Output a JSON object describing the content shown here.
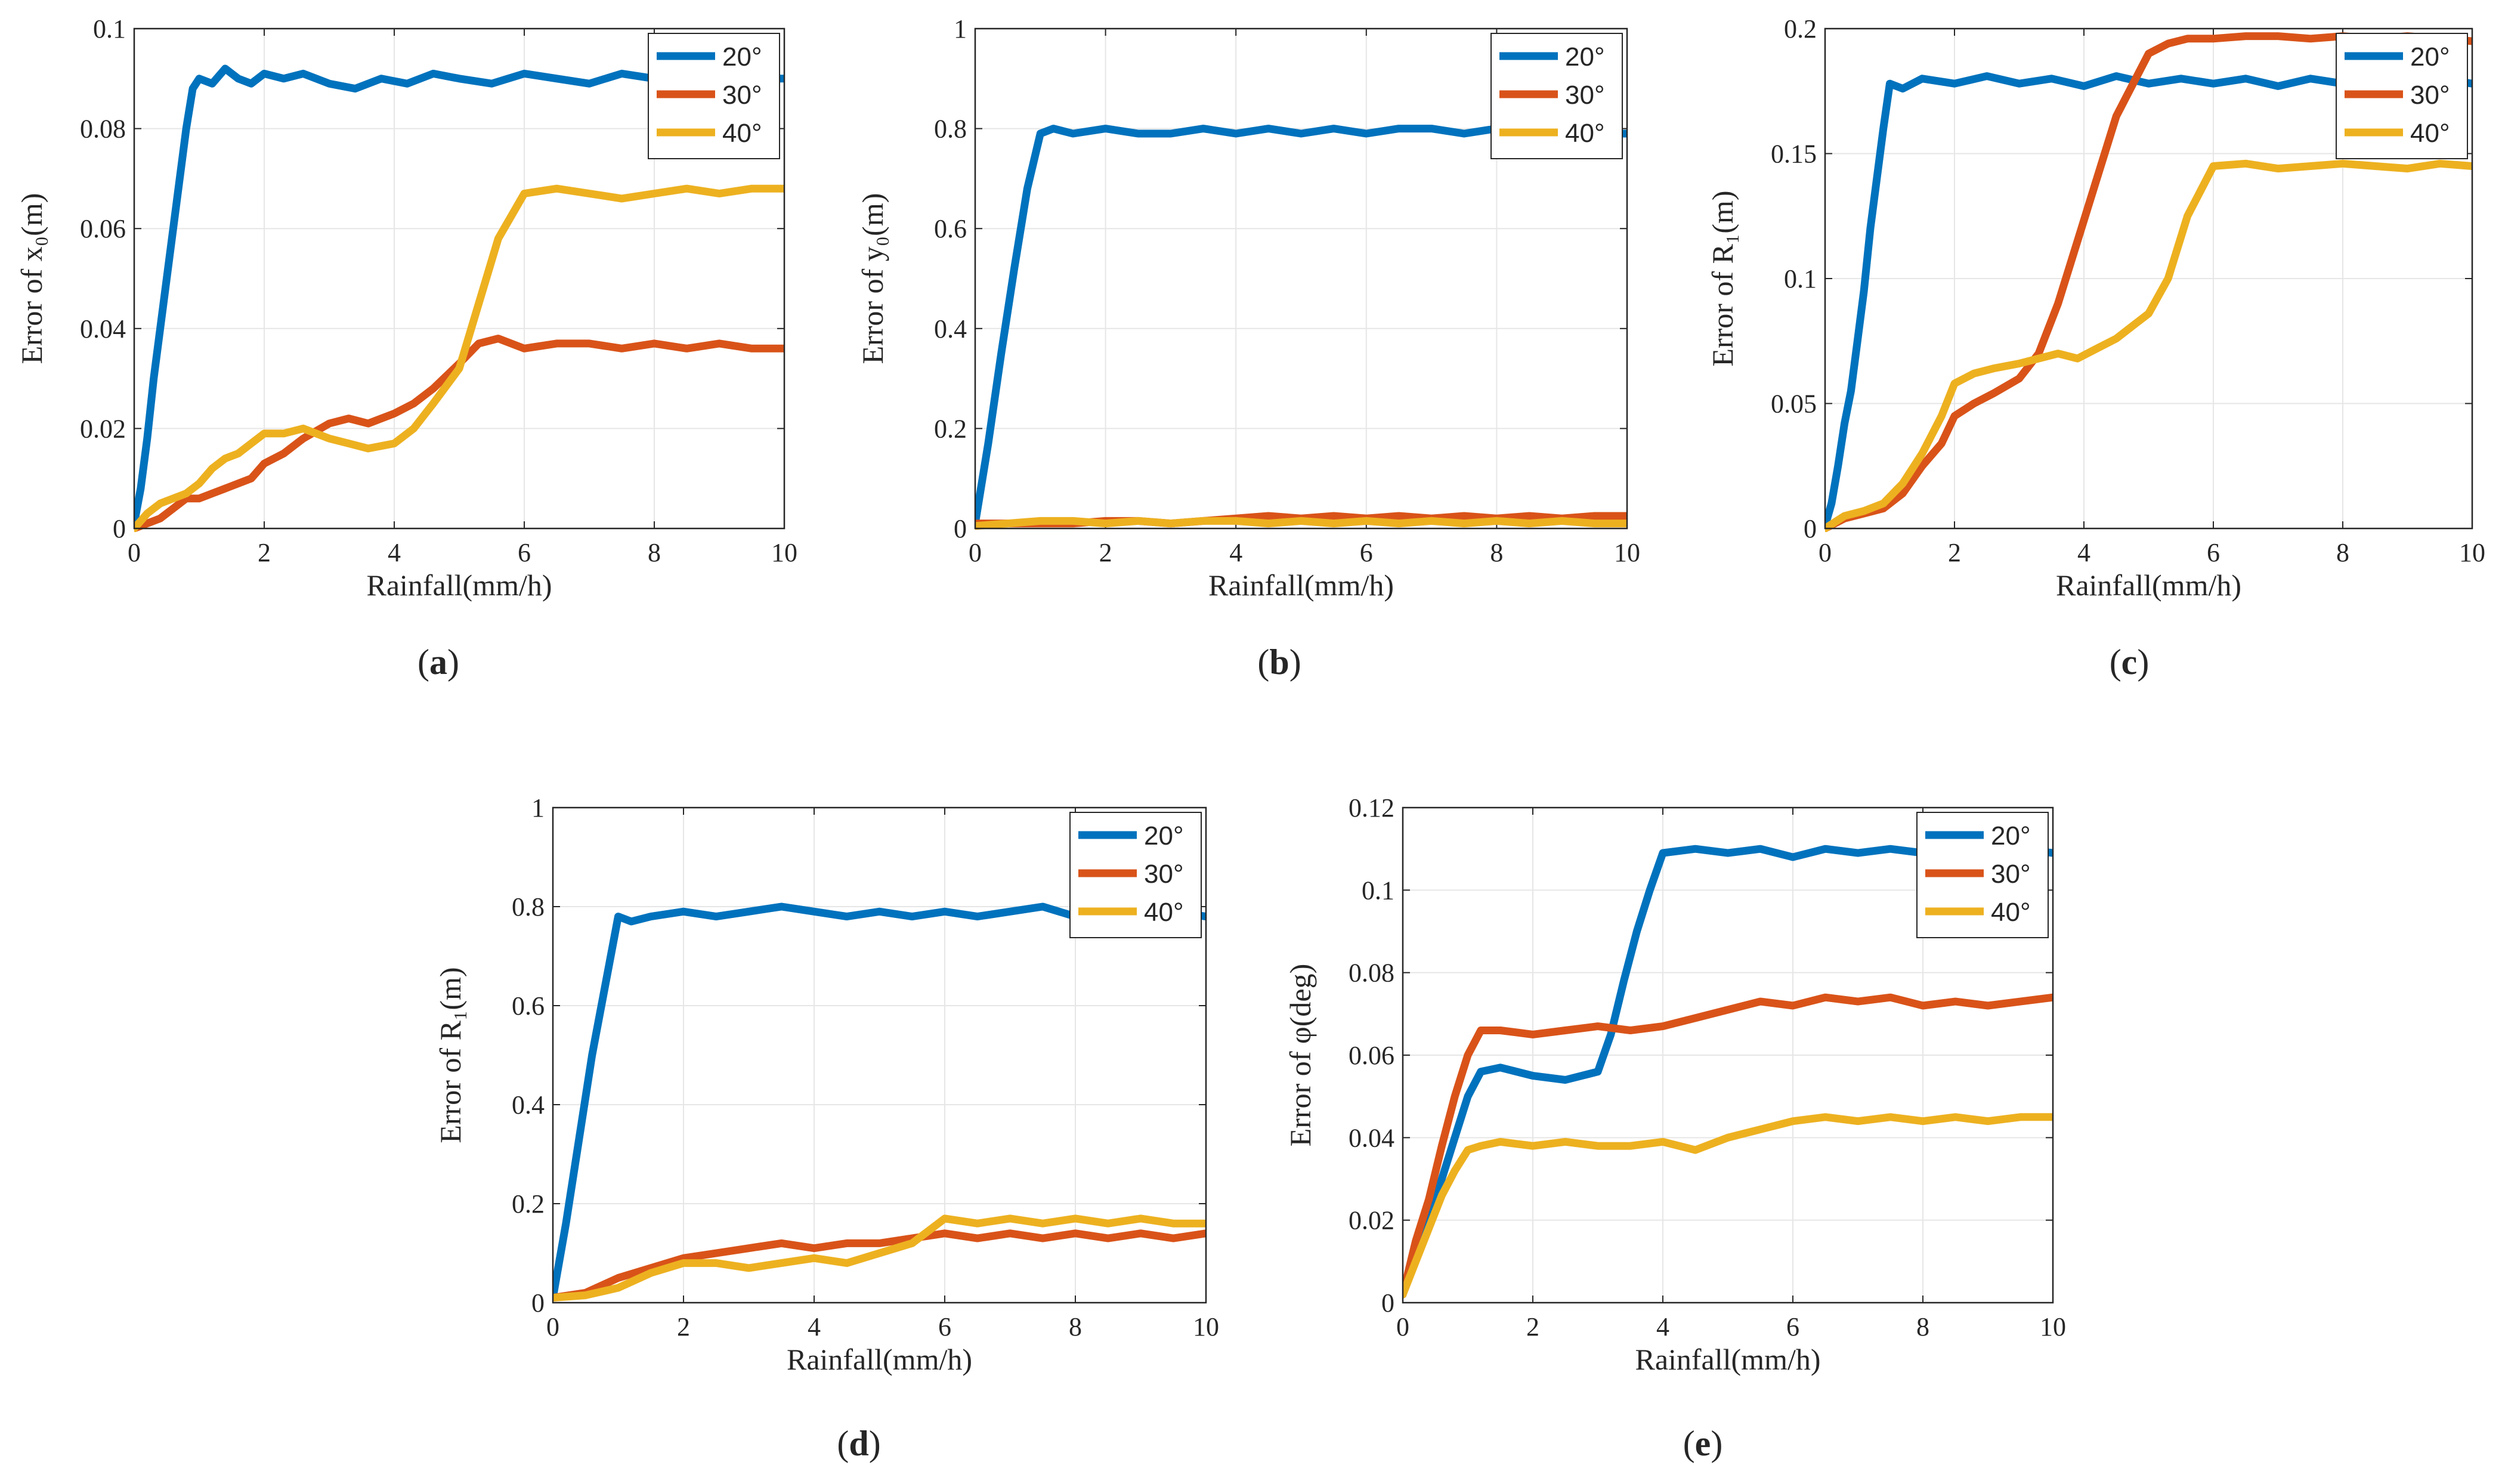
{
  "chart_data": [
    {
      "type": "line",
      "panel_label": "(a)",
      "label_letter": "a",
      "xlabel": "Rainfall(mm/h)",
      "ylabel": "Error of x₀(m)",
      "xlim": [
        0,
        10
      ],
      "ylim": [
        0,
        0.1
      ],
      "xticks": [
        "0",
        "2",
        "4",
        "6",
        "8",
        "10"
      ],
      "yticks": [
        "0",
        "0.02",
        "0.04",
        "0.06",
        "0.08",
        "0.1"
      ],
      "grid": true,
      "legend": "top-right",
      "series": [
        {
          "name": "20°",
          "color": "#0072BD",
          "x": [
            0,
            0.1,
            0.2,
            0.3,
            0.4,
            0.5,
            0.6,
            0.7,
            0.8,
            0.9,
            1,
            1.2,
            1.4,
            1.6,
            1.8,
            2,
            2.3,
            2.6,
            3,
            3.4,
            3.8,
            4.2,
            4.6,
            5,
            5.5,
            6,
            6.5,
            7,
            7.5,
            8,
            8.5,
            9,
            9.5,
            10
          ],
          "y": [
            0.001,
            0.008,
            0.018,
            0.03,
            0.04,
            0.05,
            0.06,
            0.07,
            0.08,
            0.088,
            0.09,
            0.089,
            0.092,
            0.09,
            0.089,
            0.091,
            0.09,
            0.091,
            0.089,
            0.088,
            0.09,
            0.089,
            0.091,
            0.09,
            0.089,
            0.091,
            0.09,
            0.089,
            0.091,
            0.09,
            0.089,
            0.091,
            0.09,
            0.09
          ]
        },
        {
          "name": "30°",
          "color": "#D95319",
          "x": [
            0,
            0.2,
            0.4,
            0.6,
            0.8,
            1,
            1.2,
            1.4,
            1.6,
            1.8,
            2,
            2.3,
            2.6,
            3,
            3.3,
            3.6,
            4,
            4.3,
            4.6,
            5,
            5.3,
            5.6,
            6,
            6.5,
            7,
            7.5,
            8,
            8.5,
            9,
            9.5,
            10
          ],
          "y": [
            0,
            0.001,
            0.002,
            0.004,
            0.006,
            0.006,
            0.007,
            0.008,
            0.009,
            0.01,
            0.013,
            0.015,
            0.018,
            0.021,
            0.022,
            0.021,
            0.023,
            0.025,
            0.028,
            0.033,
            0.037,
            0.038,
            0.036,
            0.037,
            0.037,
            0.036,
            0.037,
            0.036,
            0.037,
            0.036,
            0.036
          ]
        },
        {
          "name": "40°",
          "color": "#EDB120",
          "x": [
            0,
            0.2,
            0.4,
            0.6,
            0.8,
            1,
            1.2,
            1.4,
            1.6,
            1.8,
            2,
            2.3,
            2.6,
            3,
            3.3,
            3.6,
            4,
            4.3,
            4.6,
            5,
            5.3,
            5.6,
            6,
            6.5,
            7,
            7.5,
            8,
            8.5,
            9,
            9.5,
            10
          ],
          "y": [
            0,
            0.003,
            0.005,
            0.006,
            0.007,
            0.009,
            0.012,
            0.014,
            0.015,
            0.017,
            0.019,
            0.019,
            0.02,
            0.018,
            0.017,
            0.016,
            0.017,
            0.02,
            0.025,
            0.032,
            0.045,
            0.058,
            0.067,
            0.068,
            0.067,
            0.066,
            0.067,
            0.068,
            0.067,
            0.068,
            0.068
          ]
        }
      ]
    },
    {
      "type": "line",
      "panel_label": "(b)",
      "label_letter": "b",
      "xlabel": "Rainfall(mm/h)",
      "ylabel": "Error of y₀(m)",
      "xlim": [
        0,
        10
      ],
      "ylim": [
        0,
        1
      ],
      "xticks": [
        "0",
        "2",
        "4",
        "6",
        "8",
        "10"
      ],
      "yticks": [
        "0",
        "0.2",
        "0.4",
        "0.6",
        "0.8",
        "1"
      ],
      "grid": true,
      "legend": "top-right",
      "series": [
        {
          "name": "20°",
          "color": "#0072BD",
          "x": [
            0,
            0.2,
            0.4,
            0.6,
            0.8,
            1,
            1.2,
            1.5,
            2,
            2.5,
            3,
            3.5,
            4,
            4.5,
            5,
            5.5,
            6,
            6.5,
            7,
            7.5,
            8,
            8.5,
            9,
            9.5,
            10
          ],
          "y": [
            0.01,
            0.17,
            0.35,
            0.52,
            0.68,
            0.79,
            0.8,
            0.79,
            0.8,
            0.79,
            0.79,
            0.8,
            0.79,
            0.8,
            0.79,
            0.8,
            0.79,
            0.8,
            0.8,
            0.79,
            0.8,
            0.79,
            0.8,
            0.79,
            0.79
          ]
        },
        {
          "name": "30°",
          "color": "#D95319",
          "x": [
            0,
            0.5,
            1,
            1.5,
            2,
            2.5,
            3,
            3.5,
            4,
            4.5,
            5,
            5.5,
            6,
            6.5,
            7,
            7.5,
            8,
            8.5,
            9,
            9.5,
            10
          ],
          "y": [
            0.01,
            0.01,
            0.01,
            0.01,
            0.015,
            0.015,
            0.01,
            0.015,
            0.02,
            0.025,
            0.02,
            0.025,
            0.02,
            0.025,
            0.02,
            0.025,
            0.02,
            0.025,
            0.02,
            0.025,
            0.025
          ]
        },
        {
          "name": "40°",
          "color": "#EDB120",
          "x": [
            0,
            0.5,
            1,
            1.5,
            2,
            2.5,
            3,
            3.5,
            4,
            4.5,
            5,
            5.5,
            6,
            6.5,
            7,
            7.5,
            8,
            8.5,
            9,
            9.5,
            10
          ],
          "y": [
            0.005,
            0.01,
            0.015,
            0.015,
            0.01,
            0.015,
            0.01,
            0.015,
            0.015,
            0.01,
            0.015,
            0.01,
            0.015,
            0.01,
            0.015,
            0.01,
            0.015,
            0.01,
            0.015,
            0.01,
            0.01
          ]
        }
      ]
    },
    {
      "type": "line",
      "panel_label": "(c)",
      "label_letter": "c",
      "xlabel": "Rainfall(mm/h)",
      "ylabel": "Error of R₁(m)",
      "xlim": [
        0,
        10
      ],
      "ylim": [
        0,
        0.2
      ],
      "xticks": [
        "0",
        "2",
        "4",
        "6",
        "8",
        "10"
      ],
      "yticks": [
        "0",
        "0.05",
        "0.1",
        "0.15",
        "0.2"
      ],
      "grid": true,
      "legend": "top-right",
      "series": [
        {
          "name": "20°",
          "color": "#0072BD",
          "x": [
            0,
            0.1,
            0.2,
            0.3,
            0.4,
            0.5,
            0.6,
            0.7,
            0.8,
            0.9,
            1,
            1.2,
            1.5,
            2,
            2.5,
            3,
            3.5,
            4,
            4.5,
            5,
            5.5,
            6,
            6.5,
            7,
            7.5,
            8,
            8.5,
            9,
            9.5,
            10
          ],
          "y": [
            0.001,
            0.01,
            0.025,
            0.042,
            0.055,
            0.075,
            0.095,
            0.12,
            0.14,
            0.16,
            0.178,
            0.176,
            0.18,
            0.178,
            0.181,
            0.178,
            0.18,
            0.177,
            0.181,
            0.178,
            0.18,
            0.178,
            0.18,
            0.177,
            0.18,
            0.178,
            0.181,
            0.178,
            0.18,
            0.178
          ]
        },
        {
          "name": "30°",
          "color": "#D95319",
          "x": [
            0,
            0.3,
            0.6,
            0.9,
            1.2,
            1.5,
            1.8,
            2,
            2.3,
            2.6,
            3,
            3.3,
            3.6,
            3.9,
            4.2,
            4.5,
            4.8,
            5,
            5.3,
            5.6,
            6,
            6.5,
            7,
            7.5,
            8,
            8.5,
            9,
            9.5,
            10
          ],
          "y": [
            0,
            0.004,
            0.006,
            0.008,
            0.014,
            0.025,
            0.034,
            0.045,
            0.05,
            0.054,
            0.06,
            0.07,
            0.09,
            0.115,
            0.14,
            0.165,
            0.18,
            0.19,
            0.194,
            0.196,
            0.196,
            0.197,
            0.197,
            0.196,
            0.197,
            0.196,
            0.197,
            0.196,
            0.195
          ]
        },
        {
          "name": "40°",
          "color": "#EDB120",
          "x": [
            0,
            0.3,
            0.6,
            0.9,
            1.2,
            1.5,
            1.8,
            2,
            2.3,
            2.6,
            3,
            3.3,
            3.6,
            3.9,
            4.2,
            4.5,
            4.8,
            5,
            5.3,
            5.6,
            6,
            6.5,
            7,
            7.5,
            8,
            8.5,
            9,
            9.5,
            10
          ],
          "y": [
            0,
            0.005,
            0.007,
            0.01,
            0.018,
            0.03,
            0.045,
            0.058,
            0.062,
            0.064,
            0.066,
            0.068,
            0.07,
            0.068,
            0.072,
            0.076,
            0.082,
            0.086,
            0.1,
            0.125,
            0.145,
            0.146,
            0.144,
            0.145,
            0.146,
            0.145,
            0.144,
            0.146,
            0.145
          ]
        }
      ]
    },
    {
      "type": "line",
      "panel_label": "(d)",
      "label_letter": "d",
      "xlabel": "Rainfall(mm/h)",
      "ylabel": "Error of R₁(m)",
      "xlim": [
        0,
        10
      ],
      "ylim": [
        0,
        1
      ],
      "xticks": [
        "0",
        "2",
        "4",
        "6",
        "8",
        "10"
      ],
      "yticks": [
        "0",
        "0.2",
        "0.4",
        "0.6",
        "0.8",
        "1"
      ],
      "grid": true,
      "legend": "top-right",
      "series": [
        {
          "name": "20°",
          "color": "#0072BD",
          "x": [
            0,
            0.2,
            0.4,
            0.6,
            0.8,
            1,
            1.2,
            1.5,
            2,
            2.5,
            3,
            3.5,
            4,
            4.5,
            5,
            5.5,
            6,
            6.5,
            7,
            7.5,
            8,
            8.5,
            9,
            9.5,
            10
          ],
          "y": [
            0.01,
            0.16,
            0.33,
            0.5,
            0.64,
            0.78,
            0.77,
            0.78,
            0.79,
            0.78,
            0.79,
            0.8,
            0.79,
            0.78,
            0.79,
            0.78,
            0.79,
            0.78,
            0.79,
            0.8,
            0.78,
            0.79,
            0.78,
            0.79,
            0.78
          ]
        },
        {
          "name": "30°",
          "color": "#D95319",
          "x": [
            0,
            0.5,
            1,
            1.5,
            2,
            2.5,
            3,
            3.5,
            4,
            4.5,
            5,
            5.5,
            6,
            6.5,
            7,
            7.5,
            8,
            8.5,
            9,
            9.5,
            10
          ],
          "y": [
            0.01,
            0.02,
            0.05,
            0.07,
            0.09,
            0.1,
            0.11,
            0.12,
            0.11,
            0.12,
            0.12,
            0.13,
            0.14,
            0.13,
            0.14,
            0.13,
            0.14,
            0.13,
            0.14,
            0.13,
            0.14
          ]
        },
        {
          "name": "40°",
          "color": "#EDB120",
          "x": [
            0,
            0.5,
            1,
            1.5,
            2,
            2.5,
            3,
            3.5,
            4,
            4.5,
            5,
            5.5,
            6,
            6.5,
            7,
            7.5,
            8,
            8.5,
            9,
            9.5,
            10
          ],
          "y": [
            0.01,
            0.015,
            0.03,
            0.06,
            0.08,
            0.08,
            0.07,
            0.08,
            0.09,
            0.08,
            0.1,
            0.12,
            0.17,
            0.16,
            0.17,
            0.16,
            0.17,
            0.16,
            0.17,
            0.16,
            0.16
          ]
        }
      ]
    },
    {
      "type": "line",
      "panel_label": "(e)",
      "label_letter": "e",
      "xlabel": "Rainfall(mm/h)",
      "ylabel": "Error of φ(deg)",
      "xlim": [
        0,
        10
      ],
      "ylim": [
        0,
        0.12
      ],
      "xticks": [
        "0",
        "2",
        "4",
        "6",
        "8",
        "10"
      ],
      "yticks": [
        "0",
        "0.02",
        "0.04",
        "0.06",
        "0.08",
        "0.1",
        "0.12"
      ],
      "grid": true,
      "legend": "top-right",
      "series": [
        {
          "name": "20°",
          "color": "#0072BD",
          "x": [
            0,
            0.2,
            0.4,
            0.6,
            0.8,
            1,
            1.2,
            1.5,
            2,
            2.5,
            3,
            3.2,
            3.4,
            3.6,
            3.8,
            4,
            4.5,
            5,
            5.5,
            6,
            6.5,
            7,
            7.5,
            8,
            8.5,
            9,
            9.5,
            10
          ],
          "y": [
            0.002,
            0.012,
            0.02,
            0.03,
            0.04,
            0.05,
            0.056,
            0.057,
            0.055,
            0.054,
            0.056,
            0.065,
            0.078,
            0.09,
            0.1,
            0.109,
            0.11,
            0.109,
            0.11,
            0.108,
            0.11,
            0.109,
            0.11,
            0.109,
            0.11,
            0.108,
            0.11,
            0.109
          ]
        },
        {
          "name": "30°",
          "color": "#D95319",
          "x": [
            0,
            0.2,
            0.4,
            0.6,
            0.8,
            1,
            1.2,
            1.5,
            2,
            2.5,
            3,
            3.5,
            4,
            4.5,
            5,
            5.5,
            6,
            6.5,
            7,
            7.5,
            8,
            8.5,
            9,
            9.5,
            10
          ],
          "y": [
            0.002,
            0.015,
            0.025,
            0.038,
            0.05,
            0.06,
            0.066,
            0.066,
            0.065,
            0.066,
            0.067,
            0.066,
            0.067,
            0.069,
            0.071,
            0.073,
            0.072,
            0.074,
            0.073,
            0.074,
            0.072,
            0.073,
            0.072,
            0.073,
            0.074
          ]
        },
        {
          "name": "40°",
          "color": "#EDB120",
          "x": [
            0,
            0.2,
            0.4,
            0.6,
            0.8,
            1,
            1.2,
            1.5,
            2,
            2.5,
            3,
            3.5,
            4,
            4.5,
            5,
            5.5,
            6,
            6.5,
            7,
            7.5,
            8,
            8.5,
            9,
            9.5,
            10
          ],
          "y": [
            0.002,
            0.01,
            0.018,
            0.026,
            0.032,
            0.037,
            0.038,
            0.039,
            0.038,
            0.039,
            0.038,
            0.038,
            0.039,
            0.037,
            0.04,
            0.042,
            0.044,
            0.045,
            0.044,
            0.045,
            0.044,
            0.045,
            0.044,
            0.045,
            0.045
          ]
        }
      ]
    }
  ]
}
